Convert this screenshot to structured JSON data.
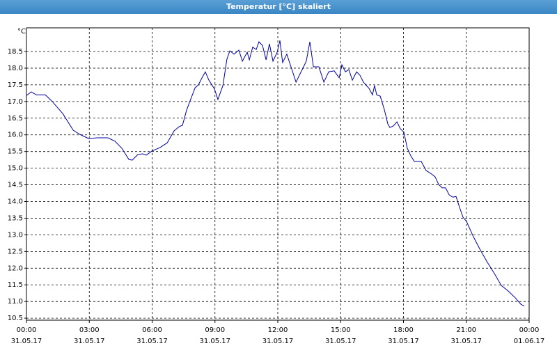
{
  "chart_data": {
    "type": "line",
    "title": "Temperatur [°C] skaliert",
    "y_label": "°C",
    "x": [
      0,
      0.23,
      0.47,
      0.9,
      1.23,
      1.73,
      2.23,
      2.56,
      2.96,
      3.39,
      3.89,
      4.22,
      4.55,
      4.89,
      5.05,
      5.32,
      5.55,
      5.72,
      5.98,
      6.38,
      6.72,
      7.05,
      7.28,
      7.45,
      7.65,
      8.05,
      8.21,
      8.38,
      8.54,
      8.71,
      8.98,
      9.14,
      9.38,
      9.57,
      9.71,
      9.91,
      10.14,
      10.31,
      10.54,
      10.64,
      10.8,
      10.97,
      11.1,
      11.27,
      11.44,
      11.6,
      11.77,
      11.97,
      12.1,
      12.23,
      12.43,
      12.63,
      12.87,
      13.03,
      13.23,
      13.36,
      13.53,
      13.7,
      13.96,
      14.2,
      14.43,
      14.69,
      14.93,
      15.06,
      15.23,
      15.39,
      15.56,
      15.76,
      15.92,
      16.09,
      16.36,
      16.52,
      16.62,
      16.72,
      16.89,
      17.09,
      17.25,
      17.35,
      17.52,
      17.69,
      17.85,
      18.02,
      18.18,
      18.35,
      18.52,
      18.85,
      19.08,
      19.35,
      19.51,
      19.68,
      19.85,
      20.01,
      20.18,
      20.35,
      20.51,
      20.68,
      20.84,
      21.01,
      21.34,
      21.68,
      22.01,
      22.34,
      22.67,
      23.01,
      23.34,
      23.6,
      23.77
    ],
    "values": [
      17.18,
      17.29,
      17.2,
      17.2,
      17.0,
      16.64,
      16.14,
      16.01,
      15.89,
      15.91,
      15.91,
      15.81,
      15.6,
      15.26,
      15.24,
      15.41,
      15.43,
      15.39,
      15.51,
      15.62,
      15.76,
      16.12,
      16.24,
      16.29,
      16.75,
      17.41,
      17.5,
      17.71,
      17.89,
      17.64,
      17.37,
      17.06,
      17.48,
      18.27,
      18.52,
      18.42,
      18.54,
      18.21,
      18.48,
      18.25,
      18.63,
      18.56,
      18.79,
      18.68,
      18.25,
      18.73,
      18.21,
      18.48,
      18.83,
      18.17,
      18.42,
      18.04,
      17.58,
      17.79,
      18.04,
      18.21,
      18.79,
      18.04,
      18.04,
      17.58,
      17.89,
      17.92,
      17.71,
      18.1,
      17.89,
      17.96,
      17.64,
      17.89,
      17.79,
      17.58,
      17.39,
      17.2,
      17.48,
      17.2,
      17.16,
      16.75,
      16.33,
      16.22,
      16.27,
      16.39,
      16.18,
      16.08,
      15.6,
      15.37,
      15.2,
      15.2,
      14.93,
      14.82,
      14.74,
      14.51,
      14.41,
      14.41,
      14.2,
      14.13,
      14.15,
      13.82,
      13.53,
      13.4,
      12.94,
      12.53,
      12.17,
      11.84,
      11.48,
      11.31,
      11.11,
      10.92,
      10.86
    ],
    "color": "#0000a0",
    "xlim": [
      0,
      24
    ],
    "xticks": [
      {
        "value": 0,
        "label": "00:00"
      },
      {
        "value": 3,
        "label": "03:00"
      },
      {
        "value": 6,
        "label": "06:00"
      },
      {
        "value": 9,
        "label": "09:00"
      },
      {
        "value": 12,
        "label": "12:00"
      },
      {
        "value": 15,
        "label": "15:00"
      },
      {
        "value": 18,
        "label": "18:00"
      },
      {
        "value": 21,
        "label": "21:00"
      },
      {
        "value": 24,
        "label": "00:00"
      }
    ],
    "xtick_dates": [
      "31.05.17",
      "31.05.17",
      "31.05.17",
      "31.05.17",
      "31.05.17",
      "31.05.17",
      "31.05.17",
      "31.05.17",
      "01.06.17"
    ],
    "ylim": [
      10.44,
      19.21
    ],
    "yticks": [
      10.5,
      {
        "value": 11,
        "label": "11.0"
      },
      11.5,
      {
        "value": 12,
        "label": "12.0"
      },
      12.5,
      {
        "value": 13,
        "label": "13.0"
      },
      13.5,
      {
        "value": 14,
        "label": "14.0"
      },
      14.5,
      {
        "value": 15,
        "label": "15.0"
      },
      15.5,
      {
        "value": 16,
        "label": "16.0"
      },
      16.5,
      {
        "value": 17,
        "label": "17.0"
      },
      17.5,
      {
        "value": 18,
        "label": "18.0"
      },
      18.5
    ],
    "grid": true
  }
}
